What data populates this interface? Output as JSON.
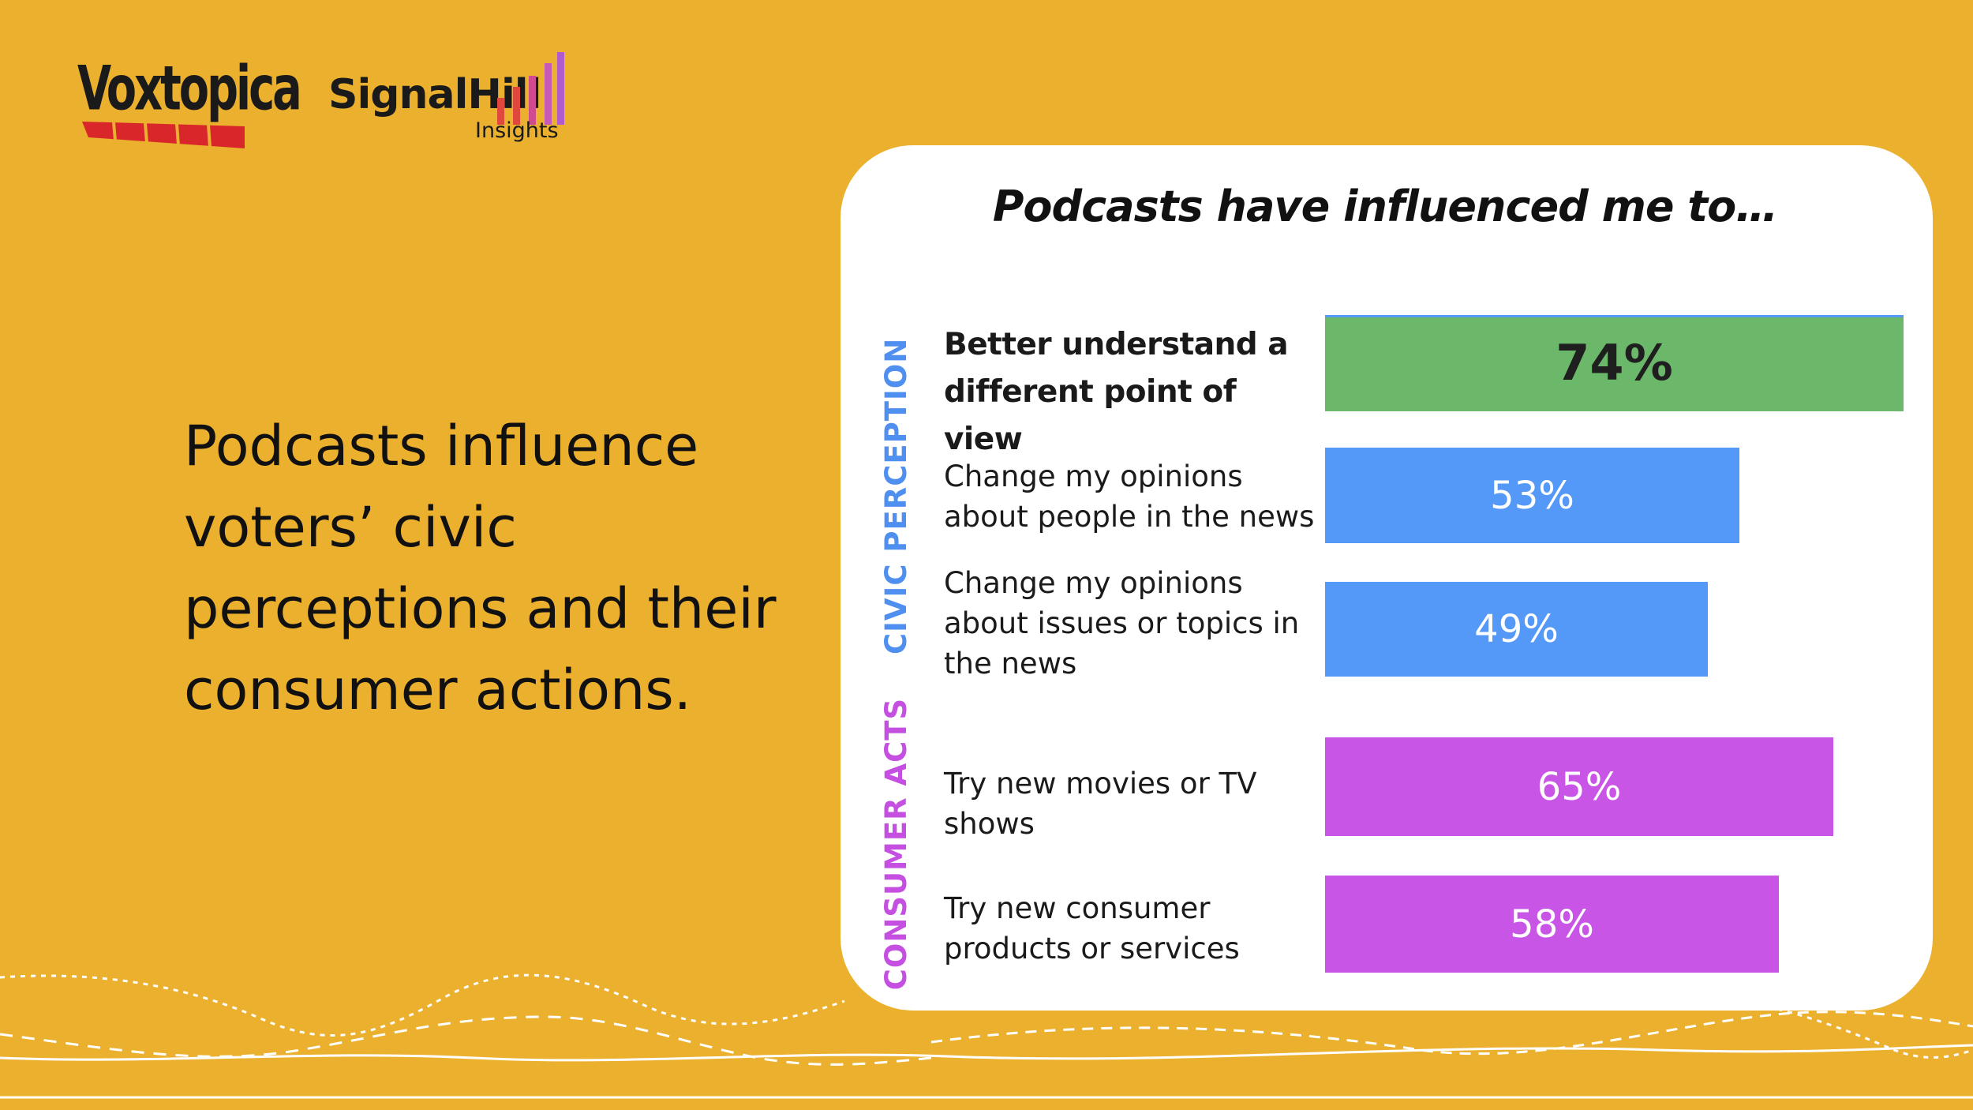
{
  "logos": {
    "voxtopica": "Voxtopica",
    "signal_hill": "SignalHill",
    "signal_hill_sub": "Insights"
  },
  "headline": "Podcasts influence voters’ civic perceptions and their consumer actions.",
  "chart_data": {
    "type": "bar",
    "orientation": "horizontal",
    "title": "Podcasts have influenced me to…",
    "groups": [
      {
        "name": "CIVIC PERCEPTION",
        "color": "#5599f8"
      },
      {
        "name": "CONSUMER ACTS",
        "color": "#c955e6"
      }
    ],
    "categories": [
      "Better understand a different point of view",
      "Change my opinions about people in the news",
      "Change my opinions about issues or topics in the news",
      "Try new movies or TV shows",
      "Try new consumer products or services"
    ],
    "values": [
      74,
      53,
      49,
      65,
      58
    ],
    "value_labels": [
      "74%",
      "53%",
      "49%",
      "65%",
      "58%"
    ],
    "bar_groups": [
      "CIVIC PERCEPTION",
      "CIVIC PERCEPTION",
      "CIVIC PERCEPTION",
      "CONSUMER ACTS",
      "CONSUMER ACTS"
    ],
    "bar_colors": [
      "#6cb86a",
      "#5599f8",
      "#5599f8",
      "#c955e6",
      "#c955e6"
    ],
    "highlight": "Better understand a different point of view",
    "xlim": [
      0,
      74
    ],
    "grid": false,
    "legend": "none"
  },
  "colors": {
    "background": "#ebb02e",
    "card": "#ffffff",
    "civic_label": "#4f8ff0",
    "consumer_label": "#c44fe0"
  }
}
